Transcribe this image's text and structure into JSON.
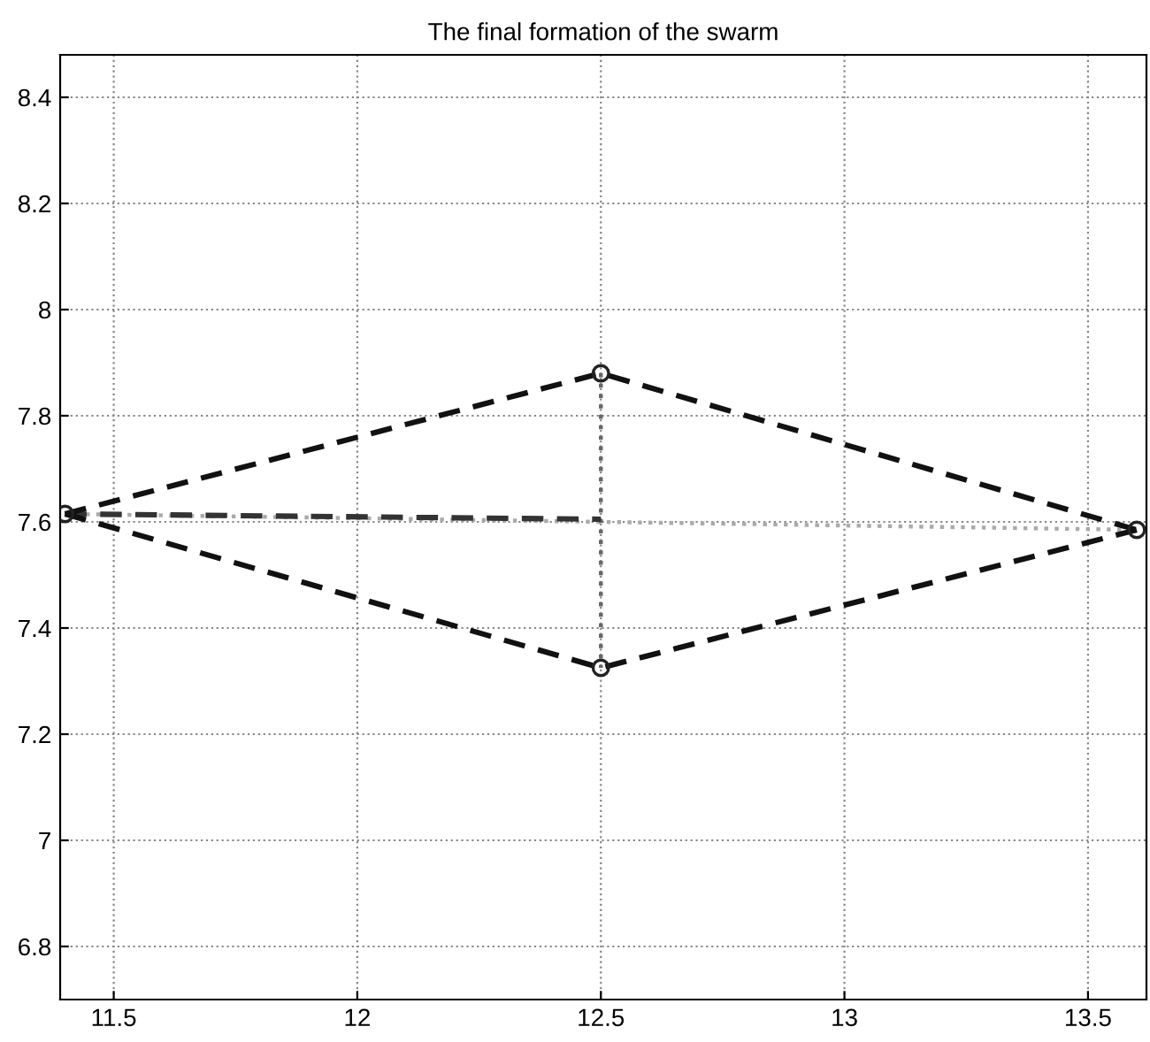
{
  "chart_data": {
    "type": "line",
    "title": "The final formation of the swarm",
    "series": [
      {
        "color": "#aaaaaa",
        "x": [
          11.4,
          13.6
        ],
        "values": [
          7.615,
          7.585
        ],
        "line_style": "dotted",
        "marker": "none"
      },
      {
        "color": "#666666",
        "x": [
          12.5,
          12.5
        ],
        "values": [
          7.88,
          7.325
        ],
        "line_style": "dotted",
        "marker": "none"
      },
      {
        "color": "#333333",
        "x": [
          11.4,
          12.5
        ],
        "values": [
          7.615,
          7.605
        ],
        "line_style": "dashed",
        "marker": "none"
      },
      {
        "color": "#111111",
        "x": [
          11.4,
          12.5,
          13.6
        ],
        "values": [
          7.615,
          7.88,
          7.585
        ],
        "line_style": "dashed",
        "marker": "none"
      },
      {
        "color": "#111111",
        "x": [
          11.4,
          12.5,
          13.6
        ],
        "values": [
          7.615,
          7.325,
          7.585
        ],
        "line_style": "dashed",
        "marker": "none"
      },
      {
        "type": "scatter",
        "color": "#222222",
        "x": [
          11.4,
          12.5,
          13.6,
          12.5
        ],
        "values": [
          7.615,
          7.88,
          7.585,
          7.325
        ],
        "marker": "circle"
      }
    ],
    "xlim": [
      11.39,
      13.62
    ],
    "xticks": [
      11.5,
      12,
      12.5,
      13,
      13.5
    ],
    "ylim": [
      6.7,
      8.48
    ],
    "yticks": [
      6.8,
      7,
      7.2,
      7.4,
      7.6,
      7.8,
      8,
      8.2,
      8.4
    ],
    "grid": true
  }
}
